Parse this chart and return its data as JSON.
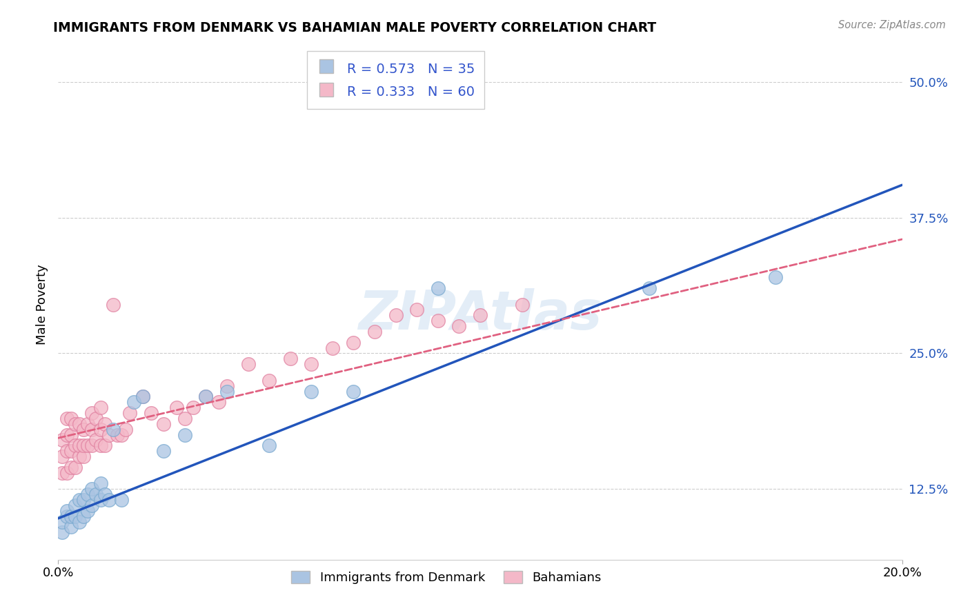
{
  "title": "IMMIGRANTS FROM DENMARK VS BAHAMIAN MALE POVERTY CORRELATION CHART",
  "source": "Source: ZipAtlas.com",
  "xmin": 0.0,
  "xmax": 0.2,
  "ymin": 0.06,
  "ymax": 0.53,
  "series1_label": "Immigrants from Denmark",
  "series1_color": "#aac4e2",
  "series1_edge_color": "#7aaad0",
  "series1_line_color": "#2255bb",
  "series1_R": 0.573,
  "series1_N": 35,
  "series2_label": "Bahamians",
  "series2_color": "#f4b8c8",
  "series2_edge_color": "#e080a0",
  "series2_line_color": "#e06080",
  "series2_R": 0.333,
  "series2_N": 60,
  "watermark": "ZIPAtlas",
  "legend_text_color": "#3355cc",
  "line1_x0": 0.0,
  "line1_y0": 0.098,
  "line1_x1": 0.2,
  "line1_y1": 0.405,
  "line2_x0": 0.0,
  "line2_y0": 0.172,
  "line2_x1": 0.2,
  "line2_y1": 0.355,
  "scatter1_x": [
    0.001,
    0.001,
    0.002,
    0.002,
    0.003,
    0.003,
    0.004,
    0.004,
    0.005,
    0.005,
    0.006,
    0.006,
    0.007,
    0.007,
    0.008,
    0.008,
    0.009,
    0.01,
    0.01,
    0.011,
    0.012,
    0.013,
    0.015,
    0.018,
    0.02,
    0.025,
    0.03,
    0.035,
    0.04,
    0.05,
    0.06,
    0.07,
    0.09,
    0.14,
    0.17
  ],
  "scatter1_y": [
    0.085,
    0.095,
    0.1,
    0.105,
    0.09,
    0.1,
    0.1,
    0.11,
    0.095,
    0.115,
    0.1,
    0.115,
    0.105,
    0.12,
    0.11,
    0.125,
    0.12,
    0.13,
    0.115,
    0.12,
    0.115,
    0.18,
    0.115,
    0.205,
    0.21,
    0.16,
    0.175,
    0.21,
    0.215,
    0.165,
    0.215,
    0.215,
    0.31,
    0.31,
    0.32
  ],
  "scatter2_x": [
    0.001,
    0.001,
    0.001,
    0.002,
    0.002,
    0.002,
    0.002,
    0.003,
    0.003,
    0.003,
    0.003,
    0.004,
    0.004,
    0.004,
    0.005,
    0.005,
    0.005,
    0.006,
    0.006,
    0.006,
    0.007,
    0.007,
    0.008,
    0.008,
    0.008,
    0.009,
    0.009,
    0.01,
    0.01,
    0.01,
    0.011,
    0.011,
    0.012,
    0.013,
    0.014,
    0.015,
    0.016,
    0.017,
    0.02,
    0.022,
    0.025,
    0.028,
    0.03,
    0.032,
    0.035,
    0.038,
    0.04,
    0.045,
    0.05,
    0.055,
    0.06,
    0.065,
    0.07,
    0.075,
    0.08,
    0.085,
    0.09,
    0.095,
    0.1,
    0.11
  ],
  "scatter2_y": [
    0.14,
    0.155,
    0.17,
    0.14,
    0.16,
    0.175,
    0.19,
    0.145,
    0.16,
    0.175,
    0.19,
    0.145,
    0.165,
    0.185,
    0.155,
    0.165,
    0.185,
    0.155,
    0.165,
    0.18,
    0.165,
    0.185,
    0.165,
    0.18,
    0.195,
    0.17,
    0.19,
    0.165,
    0.18,
    0.2,
    0.165,
    0.185,
    0.175,
    0.295,
    0.175,
    0.175,
    0.18,
    0.195,
    0.21,
    0.195,
    0.185,
    0.2,
    0.19,
    0.2,
    0.21,
    0.205,
    0.22,
    0.24,
    0.225,
    0.245,
    0.24,
    0.255,
    0.26,
    0.27,
    0.285,
    0.29,
    0.28,
    0.275,
    0.285,
    0.295
  ]
}
